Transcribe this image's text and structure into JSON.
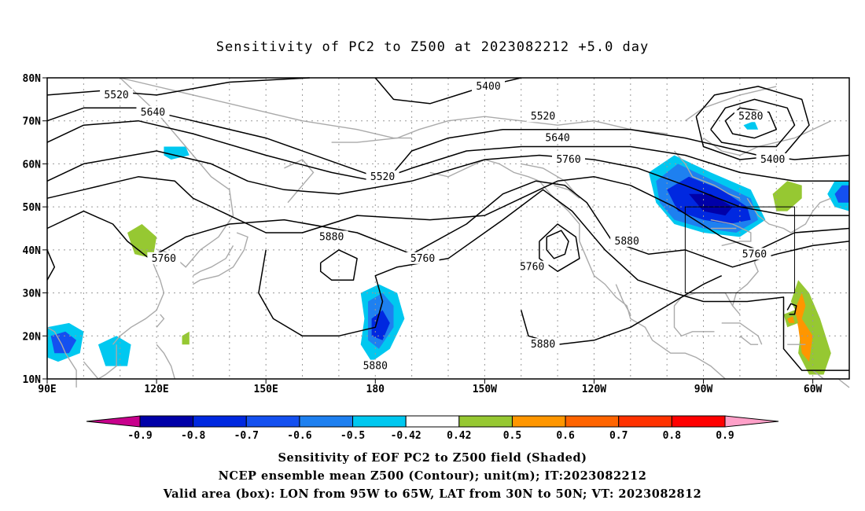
{
  "title": "Sensitivity of PC2 to Z500 at 2023082212 +5.0 day",
  "map": {
    "lon_range": [
      90,
      310
    ],
    "lat_range": [
      10,
      80
    ],
    "lat_labels": [
      "80N",
      "70N",
      "60N",
      "50N",
      "40N",
      "30N",
      "20N",
      "10N"
    ],
    "lon_labels": [
      "90E",
      "120E",
      "150E",
      "180",
      "150W",
      "120W",
      "90W",
      "60W"
    ],
    "contour_labels": [
      {
        "text": "5400",
        "lon": 211,
        "lat": 78
      },
      {
        "text": "5520",
        "lon": 109,
        "lat": 76
      },
      {
        "text": "5640",
        "lon": 119,
        "lat": 72
      },
      {
        "text": "5520",
        "lon": 226,
        "lat": 71
      },
      {
        "text": "5280",
        "lon": 283,
        "lat": 71
      },
      {
        "text": "5640",
        "lon": 230,
        "lat": 66
      },
      {
        "text": "5760",
        "lon": 233,
        "lat": 61
      },
      {
        "text": "5400",
        "lon": 289,
        "lat": 61
      },
      {
        "text": "5520",
        "lon": 182,
        "lat": 57
      },
      {
        "text": "5880",
        "lon": 168,
        "lat": 43
      },
      {
        "text": "5880",
        "lon": 249,
        "lat": 42
      },
      {
        "text": "5760",
        "lon": 122,
        "lat": 38
      },
      {
        "text": "5760",
        "lon": 193,
        "lat": 38
      },
      {
        "text": "5760",
        "lon": 223,
        "lat": 36
      },
      {
        "text": "5760",
        "lon": 284,
        "lat": 39
      },
      {
        "text": "5880",
        "lon": 226,
        "lat": 18
      },
      {
        "text": "5880",
        "lon": 180,
        "lat": 13
      }
    ],
    "valid_box": {
      "lon_min": 265,
      "lon_max": 295,
      "lat_min": 30,
      "lat_max": 50
    }
  },
  "colorbar": {
    "labels": [
      "-0.9",
      "-0.8",
      "-0.7",
      "-0.6",
      "-0.5",
      "-0.42",
      "0.42",
      "0.5",
      "0.6",
      "0.7",
      "0.8",
      "0.9"
    ],
    "colors": {
      "below": "#c8008c",
      "bins": [
        "#0000a8",
        "#0028e0",
        "#1450f0",
        "#1e80f0",
        "#00c8f0",
        "#ffffff",
        "#96c832",
        "#ff9600",
        "#ff6400",
        "#ff3200",
        "#ff0000"
      ],
      "above": "#ffa0c8"
    }
  },
  "captions": [
    "Sensitivity of EOF PC2 to Z500 field (Shaded)",
    "NCEP ensemble mean Z500 (Contour); unit(m); IT:2023082212",
    "Valid area (box): LON from 95W to 65W, LAT from 30N to 50N; VT: 2023082812"
  ]
}
